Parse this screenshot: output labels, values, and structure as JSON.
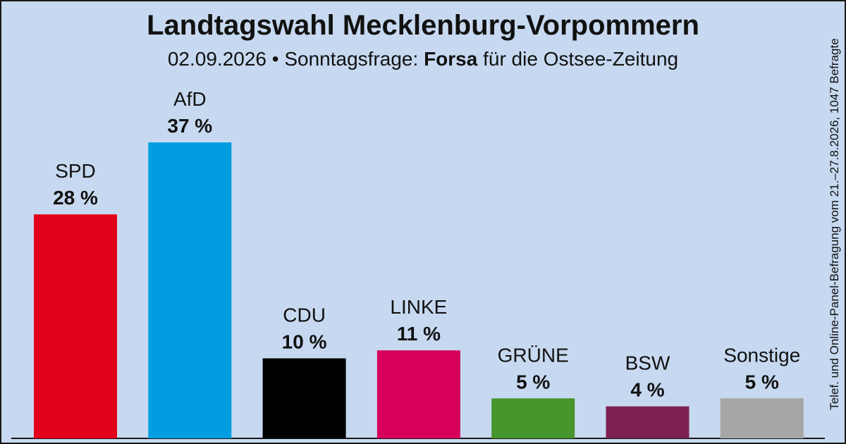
{
  "header": {
    "title": "Landtagswahl Mecklenburg-Vorpommern",
    "subtitle_prefix": "02.09.2026 • Sonntagsfrage:",
    "institute": "Forsa",
    "subtitle_suffix": "für die Ostsee-Zeitung"
  },
  "source_note": "Telef. und Online-Panel-Befragung vom 21.–27.8.2026, 1047 Befragte",
  "chart_data": {
    "type": "bar",
    "title": "Landtagswahl Mecklenburg-Vorpommern",
    "subtitle": "02.09.2026 • Sonntagsfrage: Forsa für die Ostsee-Zeitung",
    "xlabel": "",
    "ylabel": "",
    "categories": [
      "SPD",
      "AfD",
      "CDU",
      "LINKE",
      "GRÜNE",
      "BSW",
      "Sonstige"
    ],
    "values": [
      28,
      37,
      10,
      11,
      5,
      4,
      5
    ],
    "value_labels": [
      "28 %",
      "37 %",
      "10 %",
      "11 %",
      "5 %",
      "4 %",
      "5 %"
    ],
    "colors": [
      "#e3001b",
      "#009ee0",
      "#000000",
      "#d6005c",
      "#46962b",
      "#7d2150",
      "#a6a6a6"
    ],
    "grid": false,
    "legend": "none"
  }
}
